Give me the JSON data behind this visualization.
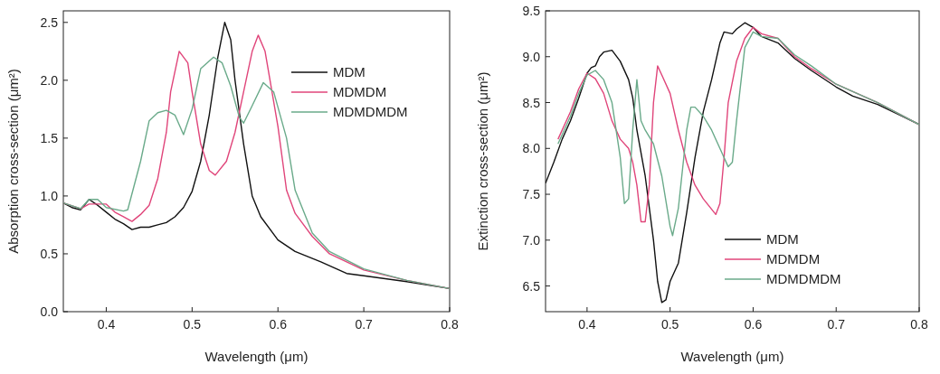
{
  "chart_data": [
    {
      "type": "line",
      "xlabel": "Wavelength (μm)",
      "ylabel": "Absorption cross-section  (μm²)",
      "xlim": [
        0.35,
        0.8
      ],
      "ylim": [
        0,
        2.6
      ],
      "xticks": [
        0.4,
        0.5,
        0.6,
        0.7,
        0.8
      ],
      "yticks": [
        {
          "value": 0,
          "label": "0.0"
        },
        0.5,
        {
          "value": 1,
          "label": "1.0"
        },
        1.5,
        {
          "value": 2,
          "label": "2.0"
        },
        2.5
      ],
      "legend": "top right",
      "grid": false,
      "marker": "none",
      "line_style": "solid",
      "series": [
        {
          "name": "MDM",
          "color": "#111111",
          "x": [
            0.35,
            0.36,
            0.37,
            0.38,
            0.39,
            0.4,
            0.41,
            0.42,
            0.43,
            0.44,
            0.45,
            0.46,
            0.47,
            0.48,
            0.49,
            0.5,
            0.51,
            0.52,
            0.53,
            0.538,
            0.545,
            0.55,
            0.56,
            0.57,
            0.58,
            0.6,
            0.62,
            0.65,
            0.68,
            0.7,
            0.75,
            0.8
          ],
          "values": [
            0.94,
            0.9,
            0.88,
            0.97,
            0.92,
            0.86,
            0.8,
            0.76,
            0.71,
            0.73,
            0.73,
            0.75,
            0.77,
            0.82,
            0.9,
            1.04,
            1.3,
            1.7,
            2.2,
            2.5,
            2.35,
            2.0,
            1.45,
            1.0,
            0.82,
            0.62,
            0.52,
            0.43,
            0.33,
            0.31,
            0.26,
            0.2
          ]
        },
        {
          "name": "MDMDM",
          "color": "#e0457a",
          "x": [
            0.35,
            0.37,
            0.38,
            0.4,
            0.41,
            0.42,
            0.43,
            0.44,
            0.45,
            0.46,
            0.47,
            0.475,
            0.485,
            0.495,
            0.5,
            0.51,
            0.52,
            0.527,
            0.54,
            0.55,
            0.56,
            0.57,
            0.577,
            0.585,
            0.6,
            0.61,
            0.62,
            0.64,
            0.66,
            0.7,
            0.75,
            0.8
          ],
          "values": [
            0.94,
            0.89,
            0.93,
            0.93,
            0.86,
            0.82,
            0.78,
            0.84,
            0.92,
            1.15,
            1.55,
            1.9,
            2.25,
            2.15,
            1.9,
            1.45,
            1.22,
            1.18,
            1.3,
            1.55,
            1.9,
            2.25,
            2.39,
            2.25,
            1.6,
            1.05,
            0.85,
            0.65,
            0.5,
            0.36,
            0.27,
            0.2
          ]
        },
        {
          "name": "MDMDMDM",
          "color": "#6aaa8a",
          "x": [
            0.35,
            0.37,
            0.38,
            0.39,
            0.4,
            0.42,
            0.425,
            0.44,
            0.45,
            0.46,
            0.47,
            0.48,
            0.49,
            0.5,
            0.51,
            0.525,
            0.535,
            0.545,
            0.555,
            0.56,
            0.57,
            0.583,
            0.595,
            0.61,
            0.62,
            0.64,
            0.66,
            0.7,
            0.75,
            0.8
          ],
          "values": [
            0.94,
            0.89,
            0.97,
            0.97,
            0.9,
            0.87,
            0.88,
            1.3,
            1.65,
            1.72,
            1.74,
            1.7,
            1.53,
            1.75,
            2.1,
            2.2,
            2.15,
            1.95,
            1.68,
            1.63,
            1.78,
            1.98,
            1.9,
            1.5,
            1.05,
            0.68,
            0.52,
            0.37,
            0.27,
            0.2
          ]
        }
      ]
    },
    {
      "type": "line",
      "xlabel": "Wavelength (μm)",
      "ylabel": "Extinction cross-section  (μm²)",
      "xlim": [
        0.35,
        0.8
      ],
      "ylim": [
        6.22,
        9.5
      ],
      "xticks": [
        0.4,
        0.5,
        0.6,
        0.7,
        0.8
      ],
      "yticks": [
        6.5,
        {
          "value": 7,
          "label": "7.0"
        },
        7.5,
        {
          "value": 8,
          "label": "8.0"
        },
        8.5,
        {
          "value": 9,
          "label": "9.0"
        },
        9.5
      ],
      "legend": "bottom right",
      "grid": false,
      "marker": "none",
      "line_style": "solid",
      "series": [
        {
          "name": "MDM",
          "color": "#111111",
          "x": [
            0.35,
            0.36,
            0.37,
            0.38,
            0.39,
            0.4,
            0.405,
            0.41,
            0.415,
            0.42,
            0.43,
            0.44,
            0.45,
            0.455,
            0.46,
            0.47,
            0.48,
            0.485,
            0.49,
            0.495,
            0.5,
            0.51,
            0.52,
            0.53,
            0.54,
            0.55,
            0.56,
            0.565,
            0.575,
            0.58,
            0.59,
            0.6,
            0.61,
            0.63,
            0.65,
            0.67,
            0.7,
            0.72,
            0.75,
            0.78,
            0.8
          ],
          "values": [
            7.62,
            7.85,
            8.1,
            8.3,
            8.55,
            8.82,
            8.88,
            8.9,
            9.0,
            9.05,
            9.07,
            8.95,
            8.75,
            8.55,
            8.2,
            7.7,
            7.0,
            6.55,
            6.32,
            6.35,
            6.55,
            6.75,
            7.3,
            7.9,
            8.4,
            8.75,
            9.15,
            9.27,
            9.25,
            9.3,
            9.37,
            9.32,
            9.22,
            9.15,
            8.98,
            8.85,
            8.67,
            8.57,
            8.48,
            8.35,
            8.26
          ]
        },
        {
          "name": "MDMDM",
          "color": "#e0457a",
          "x": [
            0.365,
            0.38,
            0.39,
            0.4,
            0.41,
            0.42,
            0.43,
            0.44,
            0.45,
            0.455,
            0.46,
            0.465,
            0.47,
            0.475,
            0.48,
            0.485,
            0.49,
            0.5,
            0.51,
            0.52,
            0.53,
            0.54,
            0.555,
            0.56,
            0.565,
            0.57,
            0.58,
            0.59,
            0.6,
            0.61,
            0.63,
            0.65,
            0.67,
            0.7,
            0.75,
            0.8
          ],
          "values": [
            8.1,
            8.4,
            8.65,
            8.82,
            8.76,
            8.6,
            8.3,
            8.1,
            8.0,
            7.85,
            7.6,
            7.2,
            7.2,
            7.6,
            8.5,
            8.9,
            8.8,
            8.6,
            8.2,
            7.85,
            7.6,
            7.45,
            7.28,
            7.4,
            7.9,
            8.5,
            8.95,
            9.2,
            9.32,
            9.25,
            9.2,
            9.0,
            8.87,
            8.7,
            8.5,
            8.26
          ]
        },
        {
          "name": "MDMDMDM",
          "color": "#6aaa8a",
          "x": [
            0.365,
            0.38,
            0.39,
            0.4,
            0.41,
            0.42,
            0.43,
            0.44,
            0.445,
            0.45,
            0.455,
            0.46,
            0.465,
            0.47,
            0.48,
            0.49,
            0.5,
            0.503,
            0.51,
            0.52,
            0.525,
            0.53,
            0.54,
            0.55,
            0.56,
            0.57,
            0.575,
            0.58,
            0.59,
            0.6,
            0.61,
            0.63,
            0.65,
            0.67,
            0.7,
            0.75,
            0.8
          ],
          "values": [
            8.05,
            8.35,
            8.6,
            8.8,
            8.85,
            8.75,
            8.5,
            7.9,
            7.4,
            7.45,
            8.2,
            8.75,
            8.3,
            8.2,
            8.05,
            7.7,
            7.15,
            7.05,
            7.35,
            8.2,
            8.45,
            8.45,
            8.35,
            8.2,
            8.0,
            7.8,
            7.85,
            8.3,
            9.1,
            9.27,
            9.22,
            9.2,
            9.02,
            8.9,
            8.7,
            8.5,
            8.26
          ]
        }
      ]
    }
  ]
}
